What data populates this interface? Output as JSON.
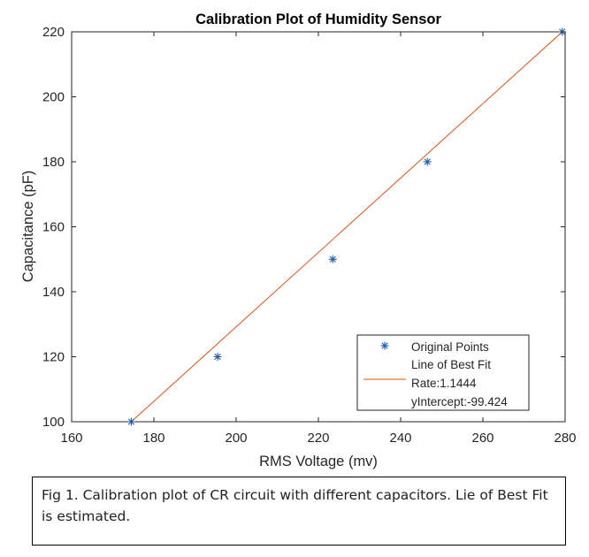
{
  "chart_data": {
    "type": "scatter",
    "title": "Calibration Plot of Humidity Sensor",
    "xlabel": "RMS Voltage (mv)",
    "ylabel": "Capacitance (pF)",
    "xlim": [
      160,
      280
    ],
    "ylim": [
      100,
      220
    ],
    "xticks": [
      160,
      180,
      200,
      220,
      240,
      260,
      280
    ],
    "yticks": [
      100,
      120,
      140,
      160,
      180,
      200,
      220
    ],
    "grid": false,
    "legend_position": "bottom-right",
    "series": [
      {
        "name": "Original Points",
        "kind": "markers",
        "marker": "asterisk",
        "color": "#1f5ea8",
        "points": [
          {
            "x": 174.5,
            "y": 100
          },
          {
            "x": 195.5,
            "y": 120
          },
          {
            "x": 223.5,
            "y": 150
          },
          {
            "x": 246.5,
            "y": 180
          },
          {
            "x": 279.3,
            "y": 220
          }
        ]
      },
      {
        "name": "Line of Best Fit",
        "kind": "line",
        "color": "#d95319",
        "points": [
          {
            "x": 174.5,
            "y": 100
          },
          {
            "x": 279.3,
            "y": 220
          }
        ]
      }
    ],
    "legend_entries": [
      {
        "text": "Original Points",
        "series": 0
      },
      {
        "text": "Line of Best Fit",
        "series": null
      },
      {
        "text": "Rate:1.1444",
        "series": 1
      },
      {
        "text": "yIntercept:-99.424",
        "series": null
      }
    ]
  },
  "caption": {
    "text": "Fig 1. Calibration plot of CR circuit with different capacitors. Lie of Best Fit is estimated."
  }
}
